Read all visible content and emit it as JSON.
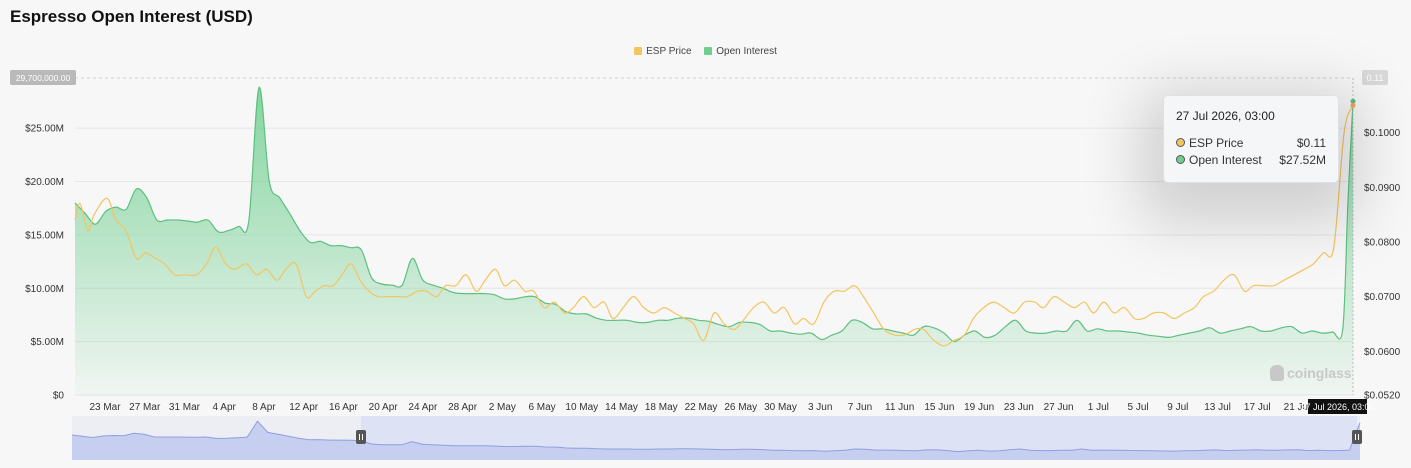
{
  "chart_data": {
    "type": "line",
    "title": "Espresso Open Interest (USD)",
    "legend": [
      "ESP Price",
      "Open Interest"
    ],
    "legend_position": "top-center",
    "x_ticks": [
      "23 Mar",
      "27 Mar",
      "31 Mar",
      "4 Apr",
      "8 Apr",
      "12 Apr",
      "16 Apr",
      "20 Apr",
      "24 Apr",
      "28 Apr",
      "2 May",
      "6 May",
      "10 May",
      "14 May",
      "18 May",
      "22 May",
      "26 May",
      "30 May",
      "3 Jun",
      "7 Jun",
      "11 Jun",
      "15 Jun",
      "19 Jun",
      "23 Jun",
      "27 Jun",
      "1 Jul",
      "5 Jul",
      "9 Jul",
      "13 Jul",
      "17 Jul",
      "21 Jul"
    ],
    "x_highlight": "27 Jul 2026, 03:00",
    "y_left_ticks": [
      "$0",
      "$5.00M",
      "$10.00M",
      "$15.00M",
      "$20.00M",
      "$25.00M"
    ],
    "y_left_range": [
      0,
      29.7
    ],
    "y_left_max_label": "29,700,000.00",
    "y_right_ticks": [
      "$0.0520",
      "$0.0600",
      "$0.0700",
      "$0.0800",
      "$0.0900",
      "$0.1000"
    ],
    "y_right_top_label": "0.11",
    "y_right_range": [
      0.052,
      0.11
    ],
    "grid": true,
    "series": [
      {
        "name": "ESP Price",
        "color": "#f3c561",
        "axis": "right",
        "x": [
          0.0,
          0.4,
          1.0,
          1.5,
          2.5,
          3.2,
          4.0,
          4.8,
          5.5,
          6.3,
          7.0,
          7.8,
          8.6,
          9.5,
          10.3,
          11.0,
          11.8,
          12.5,
          13.4,
          14.2,
          15.0,
          15.8,
          16.5,
          17.3,
          18.1,
          18.8,
          19.5,
          20.2,
          20.9,
          21.6,
          22.3,
          23.0,
          23.7,
          24.4,
          25.2,
          26.0,
          26.8,
          27.5,
          28.3,
          29.0,
          29.8,
          30.6,
          31.4,
          32.1,
          32.9,
          33.6,
          34.4,
          35.2,
          35.9,
          36.7,
          37.5,
          38.3,
          39.0,
          39.8,
          40.6,
          41.4,
          42.1,
          42.9,
          43.7,
          44.5,
          45.3,
          46.1,
          46.9,
          47.7,
          48.4,
          49.2,
          50.0,
          50.8,
          51.6,
          52.4,
          53.1,
          53.9,
          54.7,
          55.5,
          56.3,
          57.0,
          57.8,
          58.6,
          59.4,
          60.2,
          61.0,
          61.7,
          62.5,
          63.3,
          64.1,
          64.9,
          65.7,
          66.4,
          67.2,
          68.0,
          68.8,
          69.6,
          70.3,
          71.1,
          71.9,
          72.7,
          73.5,
          74.3,
          75.1,
          75.8,
          76.6,
          77.4,
          78.2,
          79.0,
          79.7,
          80.5,
          81.3,
          82.1,
          82.9,
          83.6,
          84.4,
          85.2,
          86.0,
          86.8,
          87.6,
          88.3,
          89.1,
          89.9,
          90.7,
          91.5,
          92.2,
          93.0,
          93.8,
          94.6,
          95.4,
          96.2,
          96.9,
          97.7,
          98.5,
          99.3,
          100.0
        ],
        "values": [
          0.084,
          0.087,
          0.082,
          0.085,
          0.088,
          0.084,
          0.082,
          0.077,
          0.078,
          0.077,
          0.076,
          0.074,
          0.074,
          0.074,
          0.076,
          0.079,
          0.076,
          0.075,
          0.076,
          0.074,
          0.075,
          0.073,
          0.075,
          0.076,
          0.07,
          0.071,
          0.072,
          0.072,
          0.074,
          0.076,
          0.073,
          0.071,
          0.07,
          0.07,
          0.07,
          0.07,
          0.071,
          0.071,
          0.07,
          0.072,
          0.072,
          0.074,
          0.071,
          0.073,
          0.075,
          0.072,
          0.073,
          0.071,
          0.071,
          0.068,
          0.069,
          0.067,
          0.068,
          0.07,
          0.068,
          0.069,
          0.066,
          0.068,
          0.07,
          0.068,
          0.067,
          0.068,
          0.067,
          0.066,
          0.065,
          0.062,
          0.067,
          0.065,
          0.064,
          0.066,
          0.068,
          0.069,
          0.067,
          0.068,
          0.065,
          0.066,
          0.065,
          0.069,
          0.071,
          0.071,
          0.072,
          0.07,
          0.067,
          0.064,
          0.063,
          0.063,
          0.064,
          0.064,
          0.062,
          0.061,
          0.062,
          0.063,
          0.066,
          0.068,
          0.069,
          0.068,
          0.067,
          0.069,
          0.069,
          0.068,
          0.07,
          0.069,
          0.068,
          0.069,
          0.067,
          0.069,
          0.067,
          0.068,
          0.066,
          0.066,
          0.067,
          0.067,
          0.066,
          0.067,
          0.068,
          0.07,
          0.071,
          0.073,
          0.074,
          0.071,
          0.072,
          0.072,
          0.072,
          0.073,
          0.074,
          0.075,
          0.076,
          0.078,
          0.079,
          0.1,
          0.105
        ]
      },
      {
        "name": "Open Interest",
        "color": "#6fcf8f",
        "axis": "left",
        "x": [
          0.0,
          0.8,
          1.6,
          2.4,
          3.2,
          4.0,
          4.8,
          5.6,
          6.4,
          7.2,
          8.0,
          8.8,
          9.6,
          10.4,
          11.2,
          12.0,
          12.8,
          13.6,
          14.4,
          15.2,
          16.0,
          16.8,
          17.6,
          18.4,
          19.2,
          20.0,
          20.8,
          21.6,
          22.4,
          23.2,
          24.0,
          24.8,
          25.6,
          26.4,
          27.2,
          28.0,
          28.8,
          29.6,
          30.4,
          31.2,
          32.0,
          32.8,
          33.6,
          34.4,
          35.2,
          36.0,
          36.8,
          37.6,
          38.4,
          39.2,
          40.0,
          40.8,
          41.6,
          42.4,
          43.2,
          44.0,
          44.8,
          45.6,
          46.4,
          47.2,
          48.0,
          48.8,
          49.6,
          50.4,
          51.2,
          52.0,
          52.8,
          53.6,
          54.4,
          55.2,
          56.0,
          56.8,
          57.6,
          58.4,
          59.2,
          60.0,
          60.8,
          61.6,
          62.4,
          63.2,
          64.0,
          64.8,
          65.6,
          66.4,
          67.2,
          68.0,
          68.8,
          69.6,
          70.4,
          71.2,
          72.0,
          72.8,
          73.6,
          74.4,
          75.2,
          76.0,
          76.8,
          77.6,
          78.4,
          79.2,
          80.0,
          80.8,
          81.6,
          82.4,
          83.2,
          84.0,
          84.8,
          85.6,
          86.4,
          87.2,
          88.0,
          88.8,
          89.6,
          90.4,
          91.2,
          92.0,
          92.8,
          93.6,
          94.4,
          95.2,
          96.0,
          96.8,
          97.6,
          98.4,
          99.2,
          99.6,
          100.0
        ],
        "values": [
          18.0,
          17.0,
          16.0,
          17.2,
          17.6,
          17.4,
          19.3,
          18.5,
          16.4,
          16.4,
          16.4,
          16.3,
          16.2,
          16.4,
          15.3,
          15.4,
          15.8,
          16.3,
          28.8,
          20.0,
          18.5,
          17.0,
          15.4,
          14.3,
          14.4,
          14.0,
          14.0,
          13.8,
          13.6,
          11.0,
          10.4,
          10.3,
          10.3,
          12.8,
          10.8,
          10.3,
          10.0,
          9.6,
          9.5,
          9.5,
          9.5,
          9.4,
          9.0,
          9.0,
          9.2,
          9.2,
          8.6,
          8.5,
          7.8,
          7.6,
          7.6,
          7.2,
          7.0,
          7.0,
          7.0,
          6.8,
          6.8,
          7.0,
          7.0,
          7.2,
          7.2,
          7.0,
          6.9,
          6.6,
          6.4,
          6.8,
          6.8,
          6.6,
          6.0,
          6.0,
          5.8,
          5.7,
          5.8,
          5.2,
          5.6,
          6.0,
          7.0,
          6.8,
          6.2,
          6.2,
          6.0,
          5.8,
          5.6,
          6.4,
          6.3,
          5.8,
          5.0,
          5.6,
          6.0,
          5.4,
          5.6,
          6.4,
          7.0,
          6.0,
          5.8,
          5.8,
          6.0,
          6.0,
          7.0,
          6.0,
          6.2,
          6.0,
          6.0,
          5.9,
          5.8,
          5.6,
          5.5,
          5.4,
          5.6,
          5.8,
          6.0,
          6.3,
          5.8,
          6.0,
          6.2,
          6.4,
          6.0,
          6.0,
          6.3,
          6.4,
          5.8,
          6.0,
          5.8,
          5.9,
          6.2,
          18.0,
          27.52
        ]
      }
    ]
  },
  "tooltip": {
    "title": "27 Jul 2026, 03:00",
    "rows": [
      {
        "label": "ESP Price",
        "value": "$0.11",
        "color": "#f3c561"
      },
      {
        "label": "Open Interest",
        "value": "$27.52M",
        "color": "#6fcf8f"
      }
    ]
  },
  "watermark": "coinglass"
}
